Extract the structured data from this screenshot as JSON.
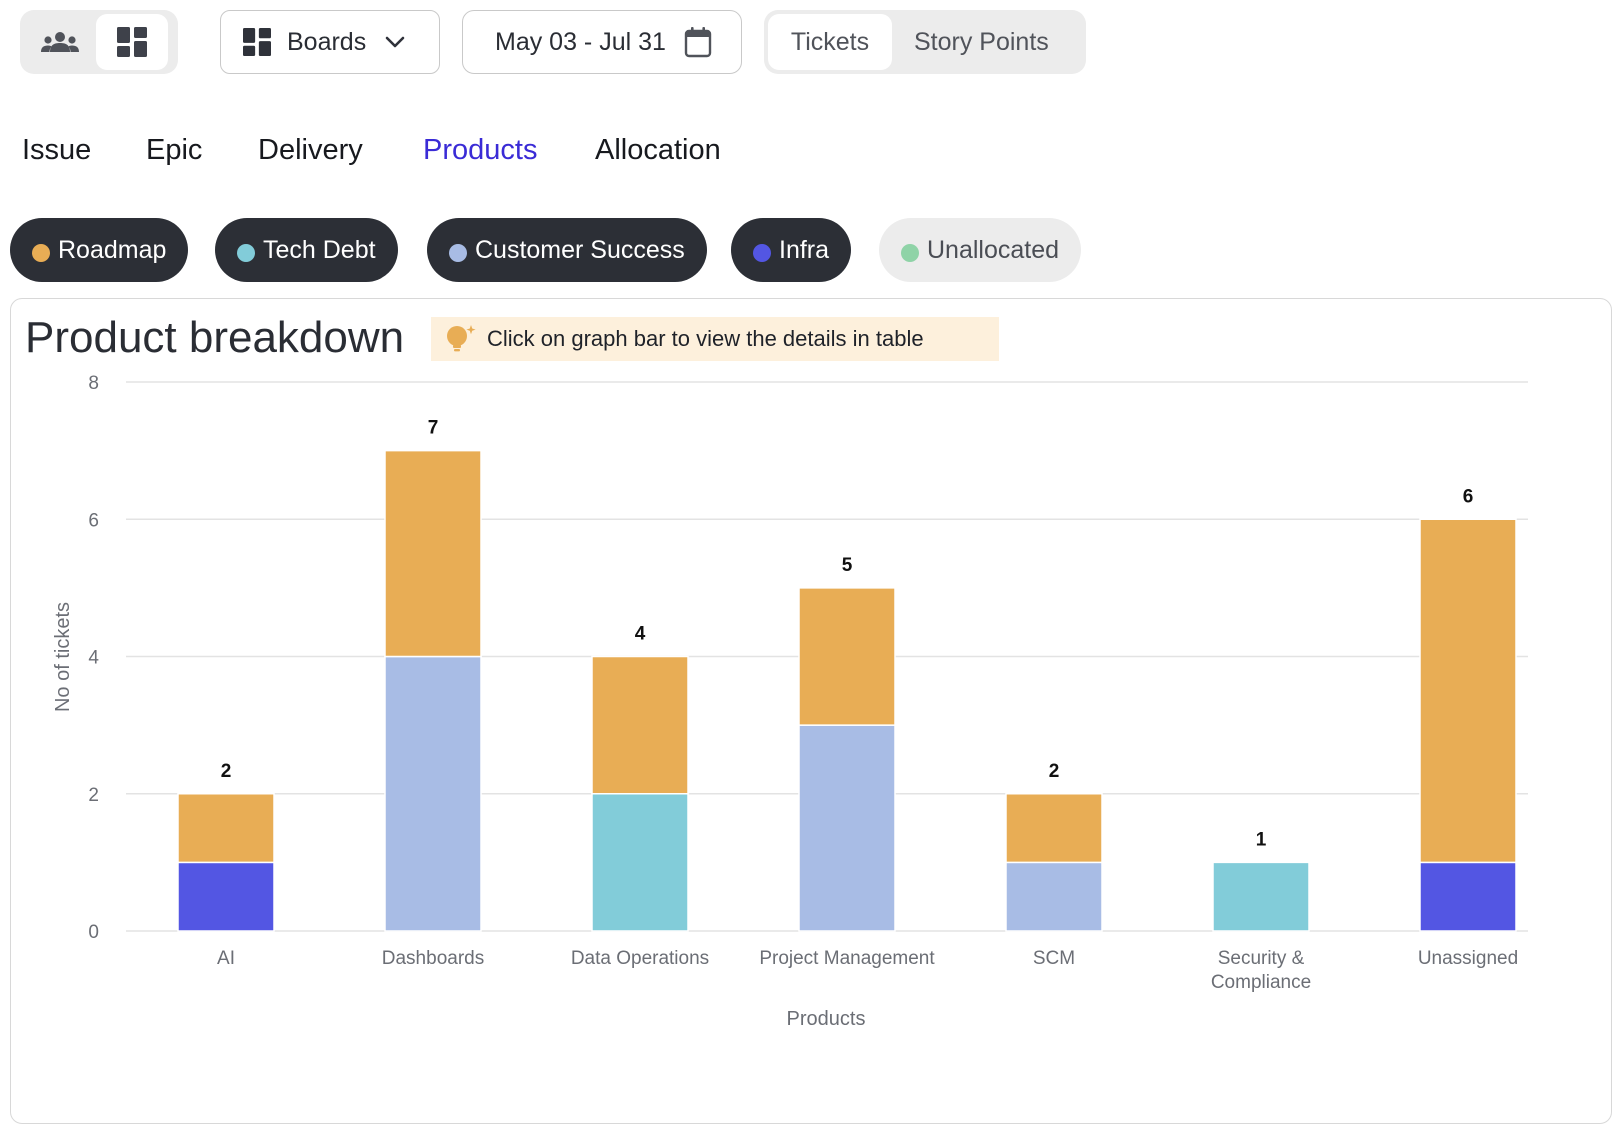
{
  "toolbar": {
    "view_toggle": {
      "options": [
        "team-view",
        "board-view"
      ],
      "active": "board-view"
    },
    "boards_label": "Boards",
    "date_range": "May 03 - Jul 31",
    "metric_options": [
      "Tickets",
      "Story Points"
    ],
    "metric_active": "Tickets"
  },
  "tabs": [
    {
      "label": "Issue"
    },
    {
      "label": "Epic"
    },
    {
      "label": "Delivery"
    },
    {
      "label": "Products"
    },
    {
      "label": "Allocation"
    }
  ],
  "active_tab": "Products",
  "legend": [
    {
      "label": "Roadmap",
      "color": "#e8ad55",
      "enabled": true
    },
    {
      "label": "Tech Debt",
      "color": "#82ccd9",
      "enabled": true
    },
    {
      "label": "Customer Success",
      "color": "#a8bce5",
      "enabled": true
    },
    {
      "label": "Infra",
      "color": "#5356e3",
      "enabled": true
    },
    {
      "label": "Unallocated",
      "color": "#8fd3a7",
      "enabled": false
    }
  ],
  "card": {
    "title": "Product breakdown",
    "hint": "Click on graph bar to view the details in table"
  },
  "colors": {
    "accent": "#3a2bd6",
    "chip_bg": "#2c2f36",
    "hint_bg": "#fdf0dc"
  },
  "chart_data": {
    "type": "bar",
    "stacked": true,
    "categories": [
      "AI",
      "Dashboards",
      "Data Operations",
      "Project Management",
      "SCM",
      "Security & Compliance",
      "Unassigned"
    ],
    "category_lines": [
      [
        "AI"
      ],
      [
        "Dashboards"
      ],
      [
        "Data Operations"
      ],
      [
        "Project Management"
      ],
      [
        "SCM"
      ],
      [
        "Security &",
        "Compliance"
      ],
      [
        "Unassigned"
      ]
    ],
    "series": [
      {
        "name": "Infra",
        "color": "#5356e3",
        "values": [
          1,
          0,
          0,
          0,
          0,
          0,
          1
        ]
      },
      {
        "name": "Customer Success",
        "color": "#a8bce5",
        "values": [
          0,
          4,
          0,
          3,
          1,
          0,
          0
        ]
      },
      {
        "name": "Tech Debt",
        "color": "#82ccd9",
        "values": [
          0,
          0,
          2,
          0,
          0,
          1,
          0
        ]
      },
      {
        "name": "Roadmap",
        "color": "#e8ad55",
        "values": [
          1,
          3,
          2,
          2,
          1,
          0,
          5
        ]
      }
    ],
    "totals": [
      2,
      7,
      4,
      5,
      2,
      1,
      6
    ],
    "xlabel": "Products",
    "ylabel": "No of tickets",
    "ylim": [
      0,
      8
    ],
    "yticks": [
      0,
      2,
      4,
      6,
      8
    ],
    "grid": true
  }
}
